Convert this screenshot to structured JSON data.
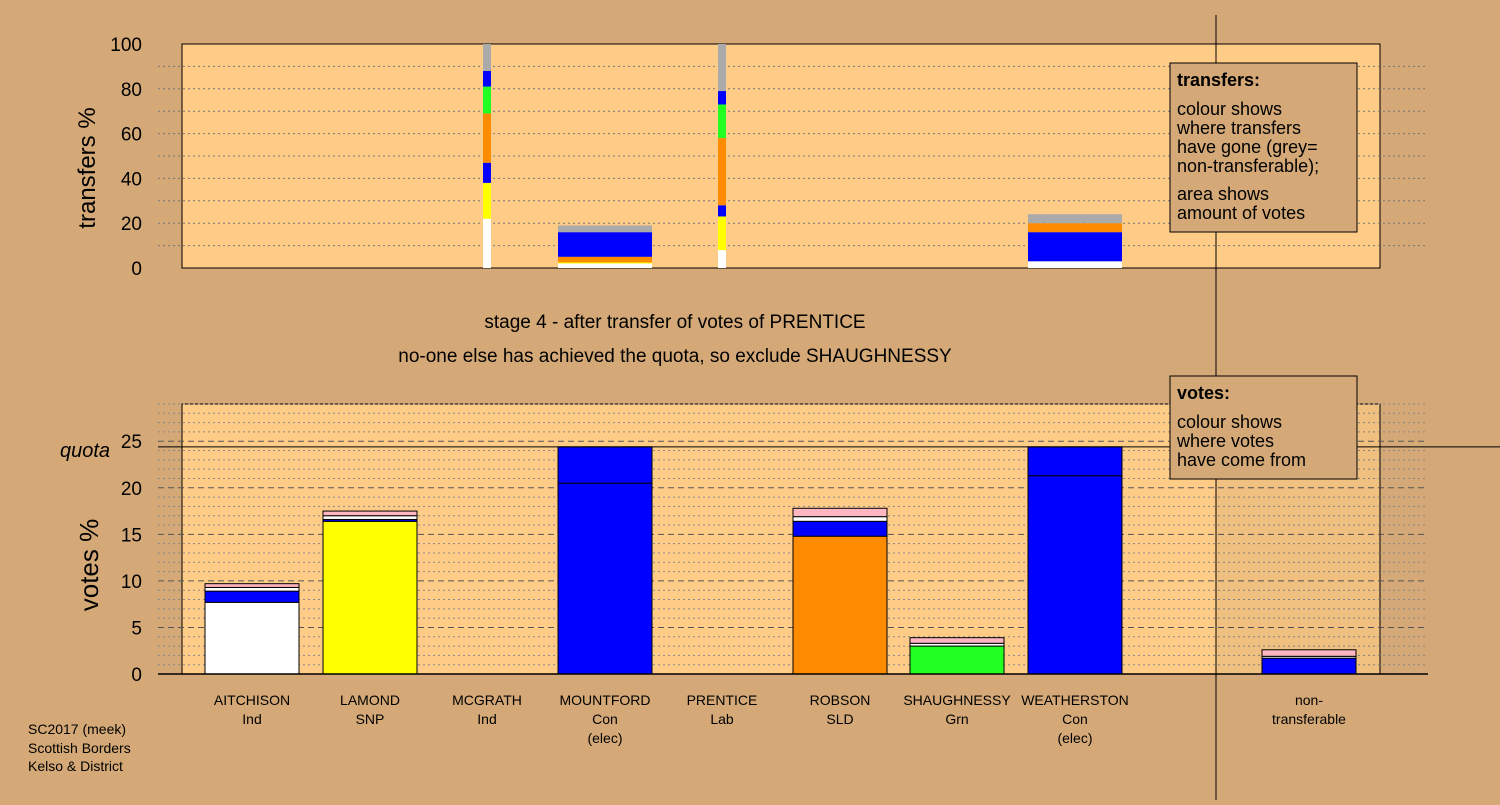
{
  "stage_title": "stage 4 - after transfer of votes of PRENTICE",
  "stage_subtitle": "no-one else has achieved the quota, so exclude SHAUGHNESSY",
  "footer": [
    "SC2017 (meek)",
    "Scottish Borders",
    "Kelso & District"
  ],
  "colors": {
    "background": "#d4a977",
    "plot_area": "#ffcc88",
    "white": "#ffffff",
    "yellow": "#ffff00",
    "blue": "#0000ff",
    "orange": "#ff8c00",
    "green": "#22ff22",
    "pink": "#ffb6c1",
    "grey": "#aaaaaa"
  },
  "candidates": [
    {
      "name": "AITCHISON",
      "party": "Ind",
      "note": ""
    },
    {
      "name": "LAMOND",
      "party": "SNP",
      "note": ""
    },
    {
      "name": "MCGRATH",
      "party": "Ind",
      "note": ""
    },
    {
      "name": "MOUNTFORD",
      "party": "Con",
      "note": "(elec)"
    },
    {
      "name": "PRENTICE",
      "party": "Lab",
      "note": ""
    },
    {
      "name": "ROBSON",
      "party": "SLD",
      "note": ""
    },
    {
      "name": "SHAUGHNESSY",
      "party": "Grn",
      "note": ""
    },
    {
      "name": "WEATHERSTON",
      "party": "Con",
      "note": "(elec)"
    }
  ],
  "nontransferable_label": [
    "non-",
    "transferable"
  ],
  "transfers_legend": {
    "title": "transfers:",
    "lines": [
      "colour shows",
      "where transfers",
      "have gone (grey=",
      "non-transferable);"
    ],
    "lines2": [
      "area shows",
      "amount of votes"
    ]
  },
  "votes_legend": {
    "title": "votes:",
    "lines": [
      "colour shows",
      "where votes",
      "have come from"
    ]
  },
  "chart_data": [
    {
      "type": "bar",
      "ylabel": "transfers %",
      "ylim": [
        0,
        100
      ],
      "yticks": [
        0,
        20,
        40,
        60,
        80,
        100
      ],
      "stack_order_bottom_to_top": [
        "AITCHISON",
        "LAMOND",
        "MCGRATH",
        "MOUNTFORD",
        "PRENTICE",
        "ROBSON",
        "SHAUGHNESSY",
        "WEATHERSTON",
        "non-transferable"
      ],
      "bars": [
        {
          "source": "MCGRATH",
          "kind": "thin",
          "segments": [
            {
              "color": "white",
              "value": 22
            },
            {
              "color": "yellow",
              "value": 16
            },
            {
              "color": "blue",
              "value": 9
            },
            {
              "color": "orange",
              "value": 22
            },
            {
              "color": "green",
              "value": 12
            },
            {
              "color": "blue",
              "value": 7
            },
            {
              "color": "grey",
              "value": 12
            }
          ]
        },
        {
          "source": "MOUNTFORD",
          "kind": "wide",
          "segments": [
            {
              "color": "white",
              "value": 2
            },
            {
              "color": "yellow",
              "value": 0.5
            },
            {
              "color": "orange",
              "value": 2.5
            },
            {
              "color": "blue",
              "value": 11
            },
            {
              "color": "grey",
              "value": 3
            }
          ]
        },
        {
          "source": "PRENTICE",
          "kind": "thin",
          "segments": [
            {
              "color": "white",
              "value": 8
            },
            {
              "color": "yellow",
              "value": 15
            },
            {
              "color": "blue",
              "value": 5
            },
            {
              "color": "orange",
              "value": 30
            },
            {
              "color": "green",
              "value": 15
            },
            {
              "color": "blue",
              "value": 6
            },
            {
              "color": "grey",
              "value": 21
            }
          ]
        },
        {
          "source": "WEATHERSTON",
          "kind": "wide",
          "segments": [
            {
              "color": "white",
              "value": 3
            },
            {
              "color": "blue",
              "value": 13
            },
            {
              "color": "orange",
              "value": 4
            },
            {
              "color": "grey",
              "value": 4
            }
          ]
        }
      ]
    },
    {
      "type": "bar",
      "ylabel": "votes %",
      "ylim": [
        0,
        29
      ],
      "yticks": [
        0,
        5,
        10,
        15,
        20,
        25
      ],
      "quota": 24.4,
      "quota_label": "quota",
      "bars": [
        {
          "candidate": "AITCHISON",
          "segments": [
            {
              "color": "white",
              "value": 7.7
            },
            {
              "color": "blue",
              "value": 1.2
            },
            {
              "color": "white",
              "value": 0.4
            },
            {
              "color": "pink",
              "value": 0.4
            }
          ]
        },
        {
          "candidate": "LAMOND",
          "segments": [
            {
              "color": "yellow",
              "value": 16.4
            },
            {
              "color": "blue",
              "value": 0.2
            },
            {
              "color": "white",
              "value": 0.4
            },
            {
              "color": "pink",
              "value": 0.5
            }
          ]
        },
        {
          "candidate": "MCGRATH",
          "segments": []
        },
        {
          "candidate": "MOUNTFORD",
          "segments": [
            {
              "color": "blue",
              "value": 20.5
            },
            {
              "color": "blue",
              "value": 3.9
            }
          ]
        },
        {
          "candidate": "PRENTICE",
          "segments": []
        },
        {
          "candidate": "ROBSON",
          "segments": [
            {
              "color": "orange",
              "value": 14.8
            },
            {
              "color": "blue",
              "value": 1.6
            },
            {
              "color": "white",
              "value": 0.5
            },
            {
              "color": "pink",
              "value": 0.9
            }
          ]
        },
        {
          "candidate": "SHAUGHNESSY",
          "segments": [
            {
              "color": "green",
              "value": 3.0
            },
            {
              "color": "white",
              "value": 0.3
            },
            {
              "color": "pink",
              "value": 0.6
            }
          ]
        },
        {
          "candidate": "WEATHERSTON",
          "segments": [
            {
              "color": "blue",
              "value": 21.3
            },
            {
              "color": "blue",
              "value": 3.1
            }
          ]
        },
        {
          "candidate": "non-transferable",
          "segments": [
            {
              "color": "blue",
              "value": 1.7
            },
            {
              "color": "white",
              "value": 0.2
            },
            {
              "color": "pink",
              "value": 0.7
            }
          ]
        }
      ]
    }
  ]
}
